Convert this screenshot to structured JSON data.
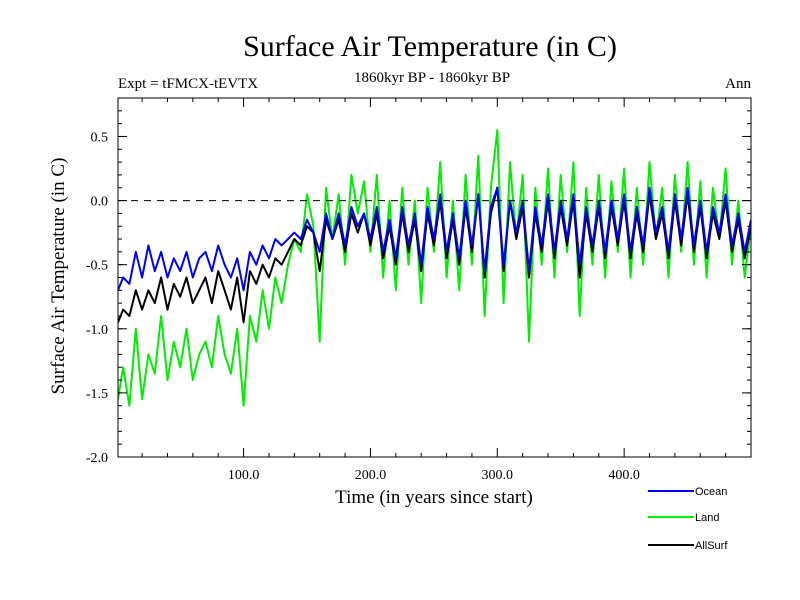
{
  "chart_data": {
    "type": "line",
    "title": "Surface Air Temperature (in C)",
    "subtitle_left": "Expt = tFMCX-tEVTX",
    "subtitle_center": "1860kyr BP - 1860kyr BP",
    "subtitle_right": "Ann",
    "xlabel": "Time (in years since start)",
    "ylabel": "Surface Air Temperature (in C)",
    "xlim": [
      1,
      500
    ],
    "ylim": [
      -2.0,
      0.8
    ],
    "xticks": [
      100,
      200,
      300,
      400
    ],
    "xtick_labels": [
      "100.0",
      "200.0",
      "300.0",
      "400.0"
    ],
    "yticks": [
      0.5,
      0.0,
      -0.5,
      -1.0,
      -1.5,
      -2.0
    ],
    "ytick_labels": [
      "0.5",
      "0.0",
      "-0.5",
      "-1.0",
      "-1.5",
      "-2.0"
    ],
    "reference_line": {
      "y": 0.0,
      "style": "dashed"
    },
    "colors": {
      "Ocean": "#0000ff",
      "Land": "#00ee00",
      "AllSurf": "#000000",
      "axis": "#000000"
    },
    "series": [
      {
        "name": "Land",
        "x": [
          1,
          5,
          10,
          15,
          20,
          25,
          30,
          35,
          40,
          45,
          50,
          55,
          60,
          65,
          70,
          75,
          80,
          85,
          90,
          95,
          100,
          105,
          110,
          115,
          120,
          125,
          130,
          135,
          140,
          145,
          150,
          155,
          160,
          165,
          170,
          175,
          180,
          185,
          190,
          195,
          200,
          205,
          210,
          215,
          220,
          225,
          230,
          235,
          240,
          245,
          250,
          255,
          260,
          265,
          270,
          275,
          280,
          285,
          290,
          295,
          300,
          305,
          310,
          315,
          320,
          325,
          330,
          335,
          340,
          345,
          350,
          355,
          360,
          365,
          370,
          375,
          380,
          385,
          390,
          395,
          400,
          405,
          410,
          415,
          420,
          425,
          430,
          435,
          440,
          445,
          450,
          455,
          460,
          465,
          470,
          475,
          480,
          485,
          490,
          495,
          500
        ],
        "values": [
          -1.55,
          -1.3,
          -1.6,
          -1.0,
          -1.55,
          -1.2,
          -1.35,
          -0.9,
          -1.4,
          -1.1,
          -1.3,
          -1.0,
          -1.4,
          -1.2,
          -1.1,
          -1.3,
          -0.9,
          -1.2,
          -1.35,
          -1.0,
          -1.6,
          -0.9,
          -1.1,
          -0.7,
          -1.0,
          -0.6,
          -0.8,
          -0.5,
          -0.3,
          -0.4,
          0.05,
          -0.2,
          -1.1,
          0.1,
          -0.3,
          0.05,
          -0.5,
          0.2,
          -0.1,
          0.15,
          -0.4,
          0.2,
          -0.6,
          0.0,
          -0.7,
          0.1,
          -0.5,
          0.0,
          -0.8,
          0.1,
          -0.4,
          0.3,
          -0.6,
          0.0,
          -0.7,
          0.2,
          -0.5,
          0.35,
          -0.9,
          0.1,
          0.55,
          -0.8,
          0.3,
          -0.3,
          0.2,
          -1.1,
          0.1,
          -0.5,
          0.25,
          -0.6,
          0.2,
          -0.4,
          0.3,
          -0.9,
          0.1,
          -0.5,
          0.2,
          -0.6,
          0.15,
          -0.4,
          0.25,
          -0.6,
          0.1,
          -0.5,
          0.3,
          -0.3,
          0.1,
          -0.6,
          0.2,
          -0.4,
          0.3,
          -0.5,
          0.15,
          -0.6,
          0.1,
          -0.3,
          0.25,
          -0.5,
          0.0,
          -0.6,
          -0.2
        ]
      },
      {
        "name": "AllSurf",
        "x": [
          1,
          5,
          10,
          15,
          20,
          25,
          30,
          35,
          40,
          45,
          50,
          55,
          60,
          65,
          70,
          75,
          80,
          85,
          90,
          95,
          100,
          105,
          110,
          115,
          120,
          125,
          130,
          135,
          140,
          145,
          150,
          155,
          160,
          165,
          170,
          175,
          180,
          185,
          190,
          195,
          200,
          205,
          210,
          215,
          220,
          225,
          230,
          235,
          240,
          245,
          250,
          255,
          260,
          265,
          270,
          275,
          280,
          285,
          290,
          295,
          300,
          305,
          310,
          315,
          320,
          325,
          330,
          335,
          340,
          345,
          350,
          355,
          360,
          365,
          370,
          375,
          380,
          385,
          390,
          395,
          400,
          405,
          410,
          415,
          420,
          425,
          430,
          435,
          440,
          445,
          450,
          455,
          460,
          465,
          470,
          475,
          480,
          485,
          490,
          495,
          500
        ],
        "values": [
          -0.95,
          -0.85,
          -0.9,
          -0.7,
          -0.85,
          -0.7,
          -0.8,
          -0.6,
          -0.85,
          -0.65,
          -0.75,
          -0.6,
          -0.8,
          -0.7,
          -0.6,
          -0.8,
          -0.55,
          -0.7,
          -0.85,
          -0.6,
          -0.95,
          -0.55,
          -0.65,
          -0.5,
          -0.6,
          -0.45,
          -0.5,
          -0.4,
          -0.3,
          -0.35,
          -0.2,
          -0.25,
          -0.55,
          -0.15,
          -0.3,
          -0.15,
          -0.4,
          -0.1,
          -0.25,
          -0.1,
          -0.35,
          -0.1,
          -0.45,
          -0.2,
          -0.5,
          -0.1,
          -0.4,
          -0.15,
          -0.55,
          -0.1,
          -0.35,
          0.0,
          -0.45,
          -0.15,
          -0.5,
          -0.05,
          -0.4,
          0.05,
          -0.6,
          -0.1,
          0.1,
          -0.55,
          0.0,
          -0.3,
          -0.05,
          -0.6,
          -0.1,
          -0.4,
          0.0,
          -0.45,
          -0.05,
          -0.35,
          0.0,
          -0.6,
          -0.1,
          -0.4,
          -0.05,
          -0.45,
          -0.05,
          -0.35,
          0.0,
          -0.45,
          -0.1,
          -0.4,
          0.05,
          -0.3,
          -0.1,
          -0.45,
          0.0,
          -0.35,
          0.05,
          -0.4,
          -0.05,
          -0.45,
          -0.1,
          -0.3,
          0.0,
          -0.4,
          -0.15,
          -0.45,
          -0.2
        ]
      },
      {
        "name": "Ocean",
        "x": [
          1,
          5,
          10,
          15,
          20,
          25,
          30,
          35,
          40,
          45,
          50,
          55,
          60,
          65,
          70,
          75,
          80,
          85,
          90,
          95,
          100,
          105,
          110,
          115,
          120,
          125,
          130,
          135,
          140,
          145,
          150,
          155,
          160,
          165,
          170,
          175,
          180,
          185,
          190,
          195,
          200,
          205,
          210,
          215,
          220,
          225,
          230,
          235,
          240,
          245,
          250,
          255,
          260,
          265,
          270,
          275,
          280,
          285,
          290,
          295,
          300,
          305,
          310,
          315,
          320,
          325,
          330,
          335,
          340,
          345,
          350,
          355,
          360,
          365,
          370,
          375,
          380,
          385,
          390,
          395,
          400,
          405,
          410,
          415,
          420,
          425,
          430,
          435,
          440,
          445,
          450,
          455,
          460,
          465,
          470,
          475,
          480,
          485,
          490,
          495,
          500
        ],
        "values": [
          -0.7,
          -0.6,
          -0.65,
          -0.4,
          -0.6,
          -0.35,
          -0.55,
          -0.4,
          -0.6,
          -0.45,
          -0.55,
          -0.4,
          -0.6,
          -0.45,
          -0.4,
          -0.55,
          -0.35,
          -0.5,
          -0.6,
          -0.45,
          -0.7,
          -0.4,
          -0.5,
          -0.35,
          -0.45,
          -0.3,
          -0.35,
          -0.3,
          -0.25,
          -0.3,
          -0.15,
          -0.25,
          -0.4,
          -0.1,
          -0.3,
          -0.1,
          -0.35,
          -0.05,
          -0.2,
          -0.1,
          -0.3,
          -0.05,
          -0.4,
          -0.15,
          -0.45,
          -0.05,
          -0.35,
          -0.1,
          -0.5,
          -0.05,
          -0.3,
          0.05,
          -0.4,
          -0.1,
          -0.45,
          0.0,
          -0.35,
          0.05,
          -0.55,
          -0.05,
          0.1,
          -0.5,
          0.0,
          -0.25,
          0.0,
          -0.55,
          -0.05,
          -0.35,
          0.05,
          -0.4,
          0.0,
          -0.3,
          0.05,
          -0.5,
          -0.05,
          -0.35,
          0.0,
          -0.4,
          0.0,
          -0.3,
          0.05,
          -0.4,
          -0.05,
          -0.35,
          0.1,
          -0.25,
          -0.05,
          -0.4,
          0.05,
          -0.3,
          0.1,
          -0.35,
          0.0,
          -0.4,
          -0.05,
          -0.25,
          0.05,
          -0.35,
          -0.1,
          -0.4,
          -0.15
        ]
      }
    ],
    "legend": {
      "placement": "bottom-right, below plot",
      "entries": [
        "Ocean",
        "Land",
        "AllSurf"
      ]
    }
  }
}
